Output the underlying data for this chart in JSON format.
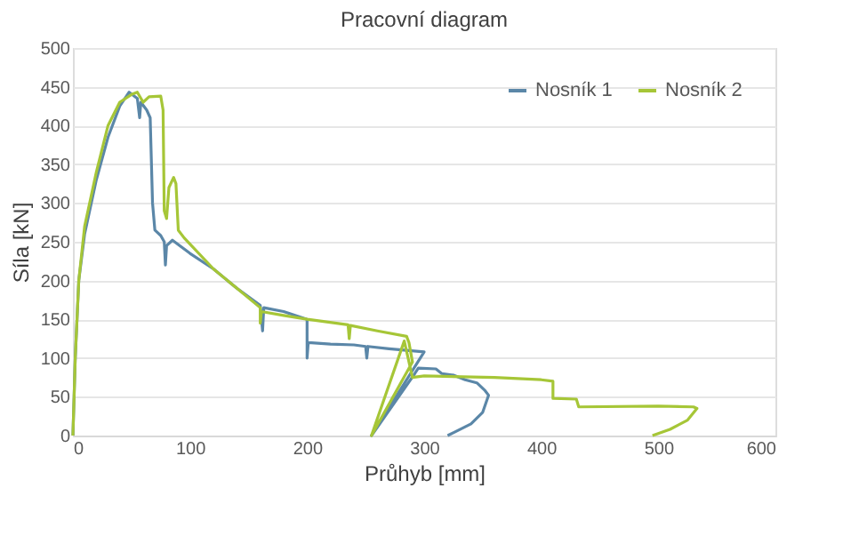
{
  "chart_data": {
    "type": "line",
    "title": "Pracovní diagram",
    "xlabel": "Průhyb [mm]",
    "ylabel": "Síla [kN]",
    "xlim": [
      0,
      600
    ],
    "xticks": [
      0,
      100,
      200,
      300,
      400,
      500,
      600
    ],
    "ylim": [
      0,
      500
    ],
    "yticks": [
      0,
      50,
      100,
      150,
      200,
      250,
      300,
      350,
      400,
      450,
      500
    ],
    "grid": "y",
    "legend": "top right",
    "marker": "none",
    "line_style": "solid",
    "series": [
      {
        "name": "Nosník 1",
        "color": "#5b87a8",
        "x": [
          0,
          2,
          5,
          10,
          20,
          30,
          40,
          48,
          55,
          57,
          58,
          63,
          66,
          68,
          70,
          75,
          78,
          79,
          80,
          85,
          100,
          120,
          140,
          160,
          162,
          163,
          180,
          200,
          200,
          201,
          220,
          240,
          250,
          251,
          252,
          270,
          300,
          255,
          292,
          295,
          310,
          315,
          325,
          335,
          345,
          352,
          355,
          350,
          340,
          320
        ],
        "values": [
          0,
          100,
          200,
          260,
          330,
          385,
          425,
          443,
          435,
          410,
          430,
          420,
          410,
          300,
          265,
          258,
          250,
          220,
          245,
          252,
          235,
          215,
          190,
          168,
          135,
          165,
          160,
          150,
          100,
          120,
          118,
          117,
          115,
          100,
          115,
          112,
          108,
          0,
          80,
          87,
          86,
          80,
          78,
          72,
          68,
          58,
          52,
          30,
          15,
          0
        ]
      },
      {
        "name": "Nosník 2",
        "color": "#a6c637",
        "x": [
          0,
          2,
          5,
          10,
          20,
          30,
          40,
          50,
          55,
          60,
          65,
          75,
          77,
          78,
          80,
          82,
          86,
          88,
          90,
          95,
          120,
          140,
          160,
          160,
          161,
          180,
          200,
          235,
          236,
          237,
          260,
          285,
          287,
          290,
          255,
          283,
          290,
          300,
          360,
          400,
          410,
          410,
          430,
          432,
          500,
          530,
          533,
          525,
          510,
          495
        ],
        "values": [
          0,
          100,
          200,
          270,
          340,
          400,
          430,
          440,
          443,
          430,
          437,
          438,
          420,
          290,
          280,
          320,
          333,
          325,
          265,
          255,
          215,
          190,
          165,
          145,
          160,
          155,
          150,
          143,
          125,
          142,
          135,
          128,
          120,
          95,
          0,
          122,
          75,
          77,
          75,
          72,
          70,
          48,
          47,
          37,
          38,
          37,
          35,
          20,
          8,
          0
        ]
      }
    ]
  }
}
